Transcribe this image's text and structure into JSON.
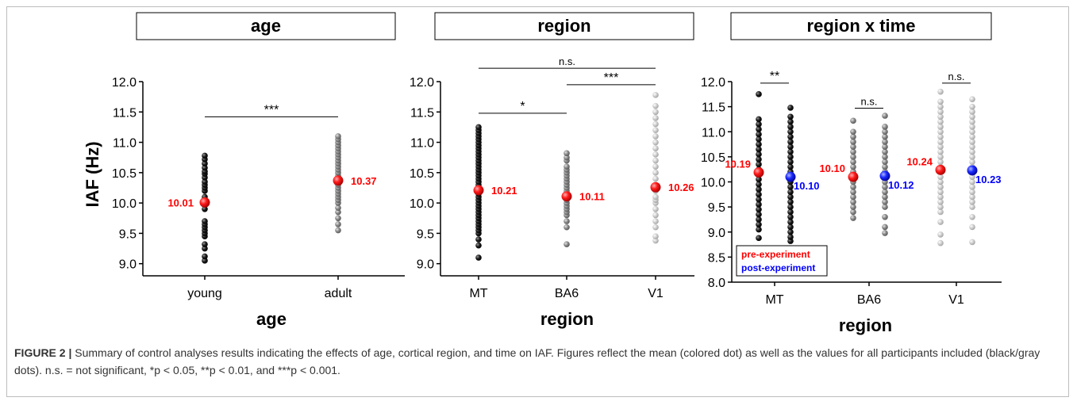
{
  "colors": {
    "mean_pre": "#ff0000",
    "mean_post": "#0000ff",
    "young": "#111111",
    "adult": "#808080",
    "MT": "#111111",
    "BA6": "#808080",
    "V1": "#c8c8c8"
  },
  "chart_data": [
    {
      "type": "scatter",
      "title": "age",
      "ylabel": "IAF (Hz)",
      "xlabel": "age",
      "ylim": [
        8.8,
        12.0
      ],
      "yticks": [
        "9.0",
        "9.5",
        "10.0",
        "10.5",
        "11.0",
        "11.5",
        "12.0"
      ],
      "categories": [
        "young",
        "adult"
      ],
      "groups": [
        {
          "name": "young",
          "mean": 10.01,
          "mean_label": "10.01",
          "values": [
            9.05,
            9.12,
            9.25,
            9.32,
            9.45,
            9.5,
            9.55,
            9.6,
            9.65,
            9.7,
            9.9,
            10.0,
            10.05,
            10.1,
            10.2,
            10.25,
            10.3,
            10.35,
            10.42,
            10.48,
            10.52,
            10.58,
            10.65,
            10.72,
            10.78
          ]
        },
        {
          "name": "adult",
          "mean": 10.37,
          "mean_label": "10.37",
          "values": [
            9.55,
            9.65,
            9.75,
            9.85,
            9.92,
            10.0,
            10.05,
            10.1,
            10.15,
            10.2,
            10.25,
            10.3,
            10.35,
            10.4,
            10.45,
            10.5,
            10.55,
            10.6,
            10.65,
            10.7,
            10.75,
            10.8,
            10.85,
            10.9,
            10.95,
            11.0,
            11.05,
            11.1
          ]
        }
      ],
      "significance": [
        {
          "from": "young",
          "to": "adult",
          "y": 11.42,
          "label": "***"
        }
      ]
    },
    {
      "type": "scatter",
      "title": "region",
      "xlabel": "region",
      "ylim": [
        8.8,
        12.0
      ],
      "yticks": [
        "9.0",
        "9.5",
        "10.0",
        "10.5",
        "11.0",
        "11.5",
        "12.0"
      ],
      "categories": [
        "MT",
        "BA6",
        "V1"
      ],
      "groups": [
        {
          "name": "MT",
          "mean": 10.21,
          "mean_label": "10.21",
          "values": [
            9.1,
            9.3,
            9.4,
            9.5,
            9.55,
            9.6,
            9.65,
            9.7,
            9.75,
            9.8,
            9.85,
            9.9,
            9.95,
            10.0,
            10.05,
            10.1,
            10.15,
            10.2,
            10.25,
            10.3,
            10.35,
            10.4,
            10.45,
            10.5,
            10.55,
            10.6,
            10.65,
            10.7,
            10.75,
            10.8,
            10.85,
            10.9,
            10.95,
            11.0,
            11.05,
            11.1,
            11.15,
            11.2,
            11.25
          ]
        },
        {
          "name": "BA6",
          "mean": 10.11,
          "mean_label": "10.11",
          "values": [
            9.32,
            9.6,
            9.7,
            9.8,
            9.85,
            9.9,
            9.95,
            10.0,
            10.05,
            10.1,
            10.15,
            10.2,
            10.25,
            10.3,
            10.35,
            10.4,
            10.45,
            10.5,
            10.55,
            10.6,
            10.7,
            10.75,
            10.82
          ]
        },
        {
          "name": "V1",
          "mean": 10.26,
          "mean_label": "10.26",
          "values": [
            9.38,
            9.45,
            9.6,
            9.7,
            9.8,
            9.9,
            10.0,
            10.05,
            10.1,
            10.2,
            10.25,
            10.3,
            10.4,
            10.5,
            10.6,
            10.7,
            10.8,
            10.9,
            11.0,
            11.1,
            11.2,
            11.3,
            11.4,
            11.5,
            11.6,
            11.78
          ]
        }
      ],
      "significance": [
        {
          "from": "MT",
          "to": "V1",
          "y": 12.22,
          "label": "n.s."
        },
        {
          "from": "BA6",
          "to": "V1",
          "y": 11.95,
          "label": "***"
        },
        {
          "from": "MT",
          "to": "BA6",
          "y": 11.48,
          "label": "*"
        }
      ]
    },
    {
      "type": "scatter",
      "title": "region x time",
      "xlabel": "region",
      "ylim": [
        8.0,
        12.0
      ],
      "yticks": [
        "8.0",
        "8.5",
        "9.0",
        "9.5",
        "10.0",
        "10.5",
        "11.0",
        "11.5",
        "12.0"
      ],
      "categories": [
        "MT",
        "BA6",
        "V1"
      ],
      "legend": {
        "placement": "bottom-left",
        "pre": "pre-experiment",
        "post": "post-experiment"
      },
      "groups": [
        {
          "name": "MT",
          "pre_mean": 10.19,
          "pre_label": "10.19",
          "post_mean": 10.1,
          "post_label": "10.10",
          "pre_values": [
            8.88,
            9.05,
            9.15,
            9.25,
            9.35,
            9.45,
            9.55,
            9.65,
            9.75,
            9.85,
            9.95,
            10.05,
            10.15,
            10.25,
            10.35,
            10.45,
            10.55,
            10.65,
            10.75,
            10.85,
            10.95,
            11.05,
            11.15,
            11.25,
            11.75
          ],
          "post_values": [
            8.82,
            8.9,
            9.0,
            9.1,
            9.2,
            9.3,
            9.4,
            9.5,
            9.6,
            9.7,
            9.8,
            9.9,
            10.0,
            10.1,
            10.2,
            10.3,
            10.4,
            10.5,
            10.6,
            10.7,
            10.8,
            10.9,
            11.0,
            11.1,
            11.2,
            11.3,
            11.48
          ]
        },
        {
          "name": "BA6",
          "pre_mean": 10.1,
          "pre_label": "10.10",
          "post_mean": 10.12,
          "post_label": "10.12",
          "pre_values": [
            9.28,
            9.4,
            9.5,
            9.6,
            9.7,
            9.8,
            9.9,
            10.0,
            10.1,
            10.2,
            10.3,
            10.4,
            10.5,
            10.6,
            10.7,
            10.8,
            10.9,
            11.0,
            11.22
          ],
          "post_values": [
            8.98,
            9.1,
            9.3,
            9.5,
            9.6,
            9.7,
            9.8,
            9.9,
            10.0,
            10.1,
            10.2,
            10.3,
            10.4,
            10.5,
            10.6,
            10.7,
            10.8,
            10.9,
            11.0,
            11.1,
            11.32
          ]
        },
        {
          "name": "V1",
          "pre_mean": 10.24,
          "pre_label": "10.24",
          "post_mean": 10.23,
          "post_label": "10.23",
          "pre_values": [
            8.78,
            8.95,
            9.2,
            9.4,
            9.5,
            9.6,
            9.7,
            9.8,
            9.9,
            10.0,
            10.1,
            10.2,
            10.3,
            10.4,
            10.5,
            10.6,
            10.7,
            10.8,
            10.9,
            11.0,
            11.1,
            11.2,
            11.3,
            11.4,
            11.5,
            11.6,
            11.8
          ],
          "post_values": [
            8.8,
            9.1,
            9.3,
            9.5,
            9.6,
            9.7,
            9.8,
            9.9,
            10.0,
            10.1,
            10.2,
            10.3,
            10.4,
            10.5,
            10.6,
            10.7,
            10.8,
            10.9,
            11.0,
            11.1,
            11.2,
            11.3,
            11.4,
            11.5,
            11.65
          ]
        }
      ],
      "significance": [
        {
          "group": "MT",
          "y": 11.97,
          "label": "**"
        },
        {
          "group": "BA6",
          "y": 11.47,
          "label": "n.s."
        },
        {
          "group": "V1",
          "y": 11.97,
          "label": "n.s."
        }
      ]
    }
  ],
  "caption": {
    "figure_label": "FIGURE 2 |",
    "text": " Summary of control analyses results indicating the effects of age, cortical region, and time on IAF. Figures reflect the mean (colored dot) as well as the values for all participants included (black/gray dots). n.s. = not significant, *p < 0.05, **p < 0.01, and ***p < 0.001."
  }
}
